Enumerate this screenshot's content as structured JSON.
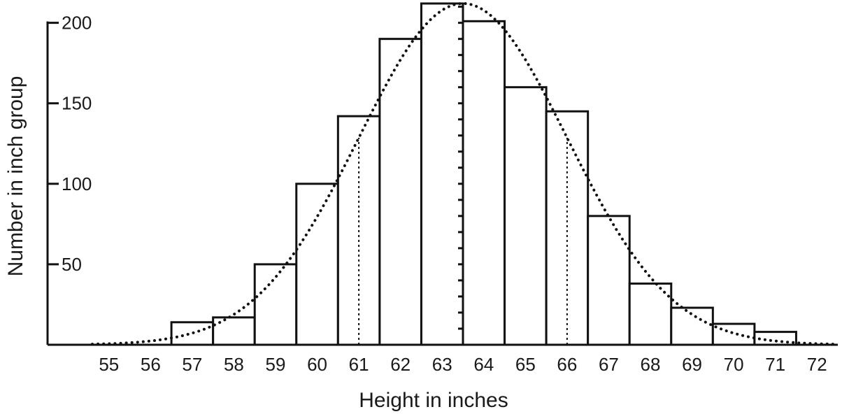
{
  "chart_data": {
    "type": "bar",
    "title": "",
    "xlabel": "Height in inches",
    "ylabel": "Number in inch group",
    "categories": [
      "57",
      "58",
      "59",
      "60",
      "61",
      "62",
      "63",
      "64",
      "65",
      "66",
      "67",
      "68",
      "69",
      "70",
      "71"
    ],
    "values": [
      14,
      17,
      50,
      100,
      142,
      190,
      212,
      201,
      160,
      145,
      80,
      38,
      23,
      13,
      8
    ],
    "x_tick_labels": [
      "55",
      "56",
      "57",
      "58",
      "59",
      "60",
      "61",
      "62",
      "63",
      "64",
      "65",
      "66",
      "67",
      "68",
      "69",
      "70",
      "71",
      "72"
    ],
    "y_tick_labels": [
      "50",
      "100",
      "150",
      "200"
    ],
    "y_ticks": [
      50,
      100,
      150,
      200
    ],
    "ylim": [
      0,
      212
    ],
    "xlim": [
      54.5,
      72.5
    ],
    "normal_curve": {
      "mean": 63.5,
      "sd": 2.5,
      "peak": 212
    },
    "sd_markers": [
      61,
      66
    ],
    "mean_marker": 63.5,
    "grid": false,
    "legend": "none"
  }
}
